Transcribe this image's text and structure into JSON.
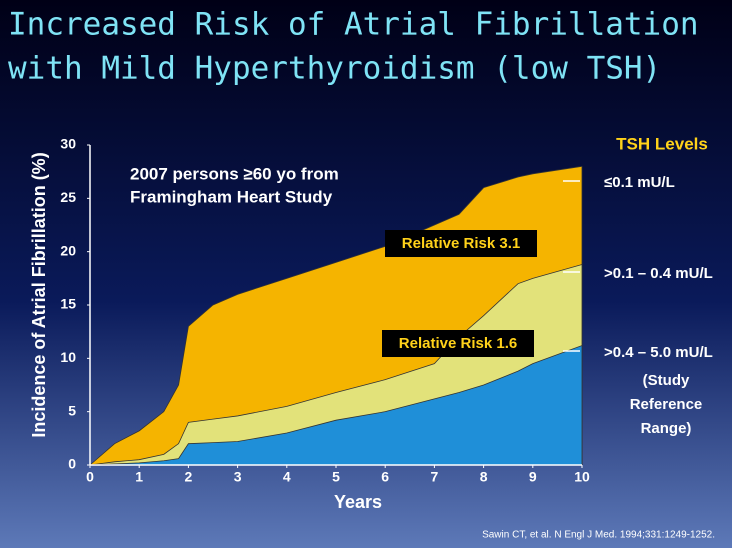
{
  "chart_data": {
    "type": "area",
    "title": [
      "Increased Risk of Atrial Fibrillation",
      "with Mild Hyperthyroidism (low TSH)"
    ],
    "x_label": "Years",
    "y_label": "Incidence of Atrial Fibrillation (%)",
    "x": [
      0,
      0.5,
      1,
      1.5,
      1.8,
      2,
      2.5,
      3,
      4,
      5,
      6,
      7,
      7.5,
      8,
      8.7,
      9,
      10
    ],
    "series": [
      {
        "name": "≤0.1 mU/L",
        "color": "#f5b400",
        "values": [
          0,
          2,
          3.2,
          5,
          7.5,
          13,
          15,
          16,
          17.5,
          19,
          20.5,
          22.5,
          23.5,
          26,
          27,
          27.3,
          28
        ]
      },
      {
        "name": ">0.1 – 0.4 mU/L",
        "color": "#e2e27a",
        "values": [
          0,
          0.3,
          0.5,
          1,
          2,
          4,
          4.3,
          4.6,
          5.5,
          6.8,
          8,
          9.5,
          12,
          14,
          17,
          17.5,
          18.8
        ]
      },
      {
        "name": ">0.4 – 5.0 mU/L",
        "color": "#1f8fd8",
        "values": [
          0,
          0.1,
          0.2,
          0.4,
          0.6,
          2,
          2.1,
          2.2,
          3,
          4.2,
          5,
          6.2,
          6.8,
          7.5,
          8.8,
          9.5,
          11.2
        ]
      }
    ],
    "legend_title": "TSH Levels",
    "legend_note": [
      "(Study",
      "Reference",
      "Range)"
    ],
    "annotations": [
      {
        "text": [
          "2007 persons ≥60 yo from",
          "Framingham Heart Study"
        ]
      },
      {
        "text": "Relative Risk 3.1"
      },
      {
        "text": "Relative Risk 1.6"
      }
    ],
    "source": "Sawin CT, et al. N Engl J Med. 1994;331:1249-1252.",
    "xlim": [
      0,
      10
    ],
    "xticks": [
      0,
      1,
      2,
      3,
      4,
      5,
      6,
      7,
      8,
      9,
      10
    ],
    "ylim": [
      0,
      30
    ],
    "yticks": [
      0,
      5,
      10,
      15,
      20,
      25,
      30
    ]
  }
}
